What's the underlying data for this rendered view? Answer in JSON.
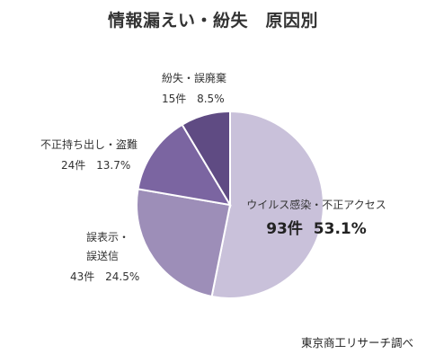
{
  "chart_data": {
    "type": "pie",
    "title": "情報漏えい・紛失　原因別",
    "source": "東京商工リサーチ調べ",
    "unit": "件",
    "slices": [
      {
        "name": "ウイルス感染・不正アクセス",
        "count": 93,
        "count_label": "93件",
        "percent": 53.1,
        "percent_label": "53.1%",
        "color": "#c9c1da"
      },
      {
        "name_lines": [
          "誤表示・",
          "誤送信"
        ],
        "count": 43,
        "count_label": "43件",
        "percent": 24.5,
        "percent_label": "24.5%",
        "color": "#9d8eb8"
      },
      {
        "name": "不正持ち出し・盗難",
        "count": 24,
        "count_label": "24件",
        "percent": 13.7,
        "percent_label": "13.7%",
        "color": "#7b65a1"
      },
      {
        "name": "紛失・誤廃棄",
        "count": 15,
        "count_label": "15件",
        "percent": 8.5,
        "percent_label": "8.5%",
        "color": "#5f4b83"
      }
    ]
  }
}
